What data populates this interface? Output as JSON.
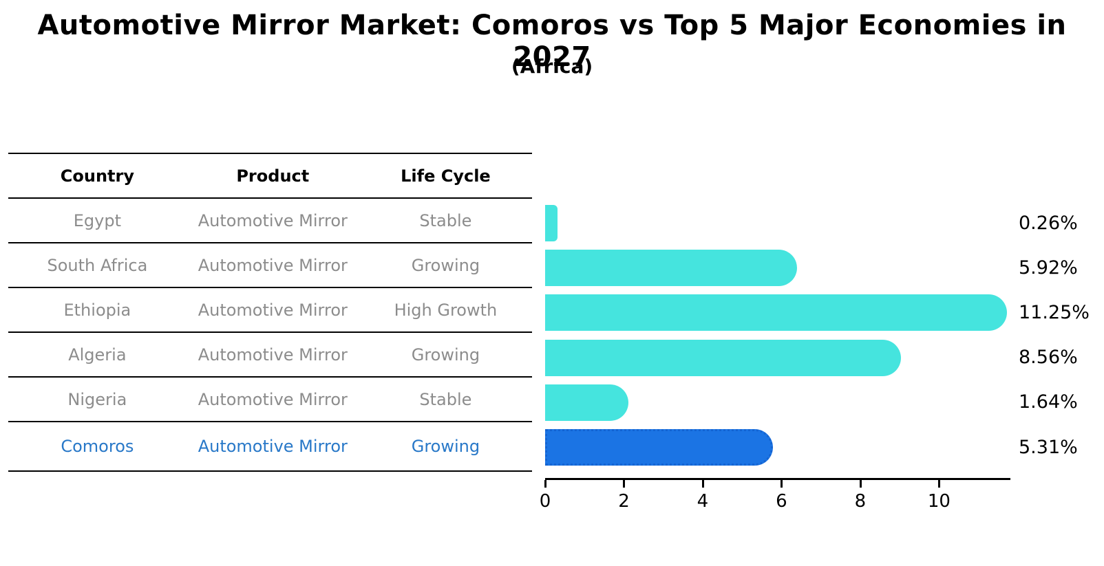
{
  "title": "Automotive Mirror Market: Comoros vs Top 5 Major Economies in 2027",
  "subtitle": "(Africa)",
  "table": {
    "headers": [
      "Country",
      "Product",
      "Life Cycle"
    ]
  },
  "chart_data": {
    "type": "bar",
    "orientation": "horizontal",
    "title": "Automotive Mirror Market: Comoros vs Top 5 Major Economies in 2027",
    "subtitle": "(Africa)",
    "categories": [
      "Egypt",
      "South Africa",
      "Ethiopia",
      "Algeria",
      "Nigeria",
      "Comoros"
    ],
    "products": [
      "Automotive Mirror",
      "Automotive Mirror",
      "Automotive Mirror",
      "Automotive Mirror",
      "Automotive Mirror",
      "Automotive Mirror"
    ],
    "life_cycles": [
      "Stable",
      "Growing",
      "High Growth",
      "Growing",
      "Stable",
      "Growing"
    ],
    "values": [
      0.26,
      5.92,
      11.25,
      8.56,
      1.64,
      5.31
    ],
    "value_labels": [
      "0.26%",
      "5.92%",
      "11.25%",
      "8.56%",
      "1.64%",
      "5.31%"
    ],
    "highlight_index": 5,
    "xlim": [
      0,
      11.81
    ],
    "x_ticks": [
      0,
      2,
      4,
      6,
      8,
      10
    ],
    "grid": false,
    "legend": false,
    "colors": {
      "bar": "#45E4DE",
      "highlight_bar": "#1B74E4",
      "highlight_border": "#1464D2",
      "highlight_text": "#2878C8",
      "table_text": "#8C8C8C",
      "text": "#000000"
    }
  }
}
